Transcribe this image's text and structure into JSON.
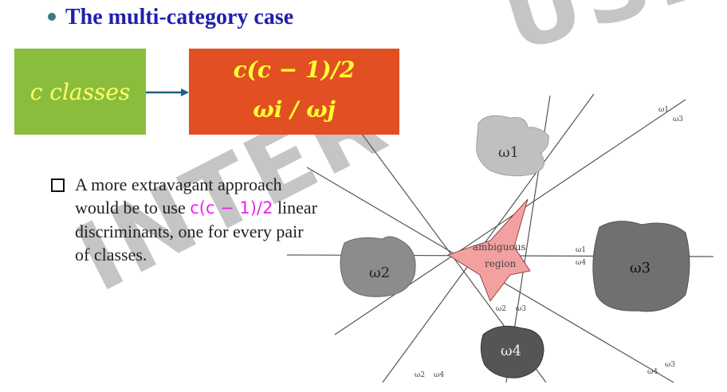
{
  "slide": {
    "title": "The multi-category case",
    "box_left": "c classes",
    "box_right_line1": "c(c − 1)/2",
    "box_right_line2": "ωi / ωj",
    "body_pre": "A more extravagant approach would be to use ",
    "body_formula": "c(c − 1)/2",
    "body_post": " linear discriminants, one for every pair of classes."
  },
  "watermark": {
    "top": "USE",
    "bottom": "INTER"
  },
  "diagram": {
    "class_labels": {
      "w1": "ω1",
      "w2": "ω2",
      "w3": "ω3",
      "w4": "ω4"
    },
    "ambiguous_line1": "ambiguous",
    "ambiguous_line2": "region",
    "line_labels": {
      "top_right_a": "ω1",
      "top_right_b": "ω3",
      "mid_right_a": "ω1",
      "mid_right_b": "ω4",
      "bottom_a": "ω2",
      "bottom_b": "ω3",
      "bottom_left_a": "ω2",
      "bottom_left_b": "ω4",
      "bottom_right_a": "ω3",
      "bottom_right_b": "ω4"
    }
  },
  "colors": {
    "title": "#1f1fae",
    "green_box": "#8bbd3c",
    "orange_box": "#e24f22",
    "box_text": "#ffff33",
    "formula": "#ee22ee",
    "region_fill": "#f2a0a0"
  }
}
